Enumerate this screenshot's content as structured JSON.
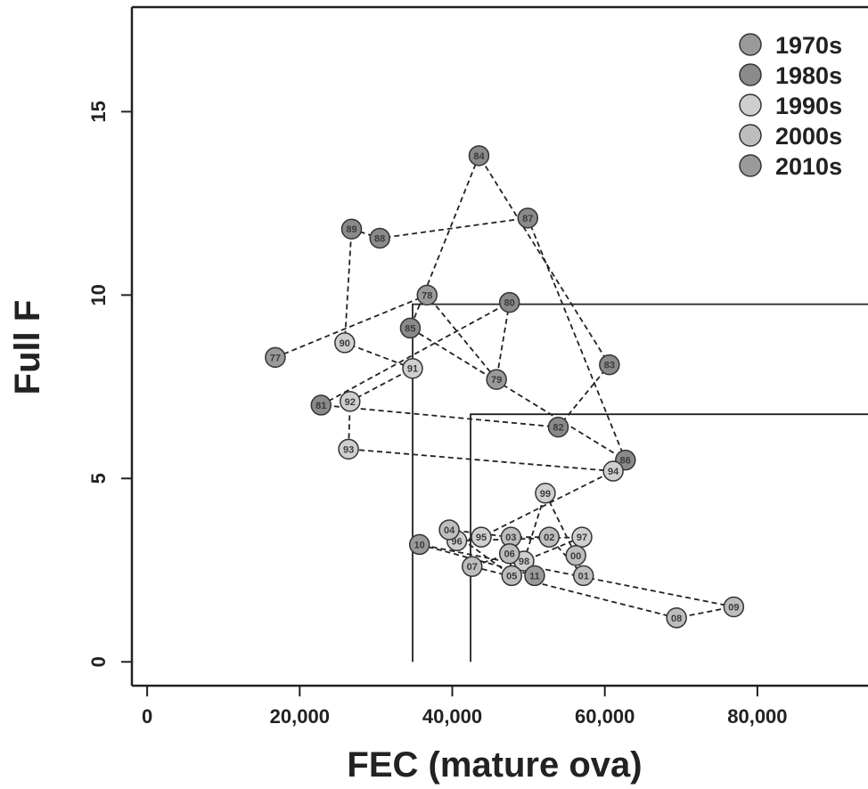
{
  "chart_data": {
    "type": "scatter",
    "title": "",
    "xlabel": "FEC (mature ova)",
    "ylabel": "Full F",
    "xlim": [
      -2000,
      94500
    ],
    "ylim": [
      -0.65,
      17.85
    ],
    "x_ticks": [
      0,
      20000,
      40000,
      60000,
      80000
    ],
    "x_tick_labels": [
      "0",
      "20,000",
      "40,000",
      "60,000",
      "80,000"
    ],
    "y_ticks": [
      0,
      5,
      10,
      15
    ],
    "y_tick_labels": [
      "0",
      "5",
      "10",
      "15"
    ],
    "grid": false,
    "legend_position": "top-right",
    "colors": {
      "axis": "#222222",
      "point_stroke": "#333333",
      "path": "#222222",
      "decades": {
        "1970s": "#9a9a9a",
        "1980s": "#8a8a8a",
        "1990s": "#cfcfcf",
        "2000s": "#bdbdbd",
        "2010s": "#9a9a9a"
      }
    },
    "series": [
      {
        "name": "1970s",
        "points": [
          {
            "label": "77",
            "x": 16800,
            "y": 8.3
          },
          {
            "label": "78",
            "x": 36700,
            "y": 10.0
          },
          {
            "label": "79",
            "x": 45800,
            "y": 7.7
          }
        ]
      },
      {
        "name": "1980s",
        "points": [
          {
            "label": "80",
            "x": 47500,
            "y": 9.8
          },
          {
            "label": "81",
            "x": 22800,
            "y": 7.0
          },
          {
            "label": "82",
            "x": 53900,
            "y": 6.4
          },
          {
            "label": "83",
            "x": 60600,
            "y": 8.1
          },
          {
            "label": "84",
            "x": 43500,
            "y": 13.8
          },
          {
            "label": "85",
            "x": 34500,
            "y": 9.1
          },
          {
            "label": "86",
            "x": 62700,
            "y": 5.5
          },
          {
            "label": "87",
            "x": 49900,
            "y": 12.1
          },
          {
            "label": "88",
            "x": 30500,
            "y": 11.55
          },
          {
            "label": "89",
            "x": 26800,
            "y": 11.8
          }
        ]
      },
      {
        "name": "1990s",
        "points": [
          {
            "label": "90",
            "x": 25900,
            "y": 8.7
          },
          {
            "label": "91",
            "x": 34800,
            "y": 8.0
          },
          {
            "label": "92",
            "x": 26600,
            "y": 7.1
          },
          {
            "label": "93",
            "x": 26400,
            "y": 5.8
          },
          {
            "label": "94",
            "x": 61100,
            "y": 5.2
          },
          {
            "label": "95",
            "x": 43800,
            "y": 3.4
          },
          {
            "label": "96",
            "x": 40600,
            "y": 3.3
          },
          {
            "label": "97",
            "x": 57000,
            "y": 3.4
          },
          {
            "label": "98",
            "x": 49400,
            "y": 2.75
          },
          {
            "label": "99",
            "x": 52200,
            "y": 4.6
          }
        ]
      },
      {
        "name": "2000s",
        "points": [
          {
            "label": "00",
            "x": 56200,
            "y": 2.9
          },
          {
            "label": "01",
            "x": 57200,
            "y": 2.35
          },
          {
            "label": "02",
            "x": 52700,
            "y": 3.4
          },
          {
            "label": "03",
            "x": 47700,
            "y": 3.4
          },
          {
            "label": "04",
            "x": 39600,
            "y": 3.6
          },
          {
            "label": "05",
            "x": 47800,
            "y": 2.35
          },
          {
            "label": "06",
            "x": 47500,
            "y": 2.95
          },
          {
            "label": "07",
            "x": 42600,
            "y": 2.6
          },
          {
            "label": "08",
            "x": 69400,
            "y": 1.2
          },
          {
            "label": "09",
            "x": 76900,
            "y": 1.5
          }
        ]
      },
      {
        "name": "2010s",
        "points": [
          {
            "label": "10",
            "x": 35700,
            "y": 3.2
          },
          {
            "label": "11",
            "x": 50800,
            "y": 2.35
          }
        ]
      }
    ],
    "path_order": [
      "77",
      "78",
      "79",
      "80",
      "81",
      "82",
      "83",
      "84",
      "85",
      "86",
      "87",
      "88",
      "89",
      "90",
      "91",
      "92",
      "93",
      "94",
      "95",
      "96",
      "97",
      "98",
      "99",
      "00",
      "01",
      "02",
      "03",
      "04",
      "05",
      "06",
      "07",
      "08",
      "09",
      "10",
      "11"
    ],
    "reference_lines": [
      {
        "x": 34800,
        "y": 9.75
      },
      {
        "x": 42400,
        "y": 6.75
      }
    ]
  }
}
